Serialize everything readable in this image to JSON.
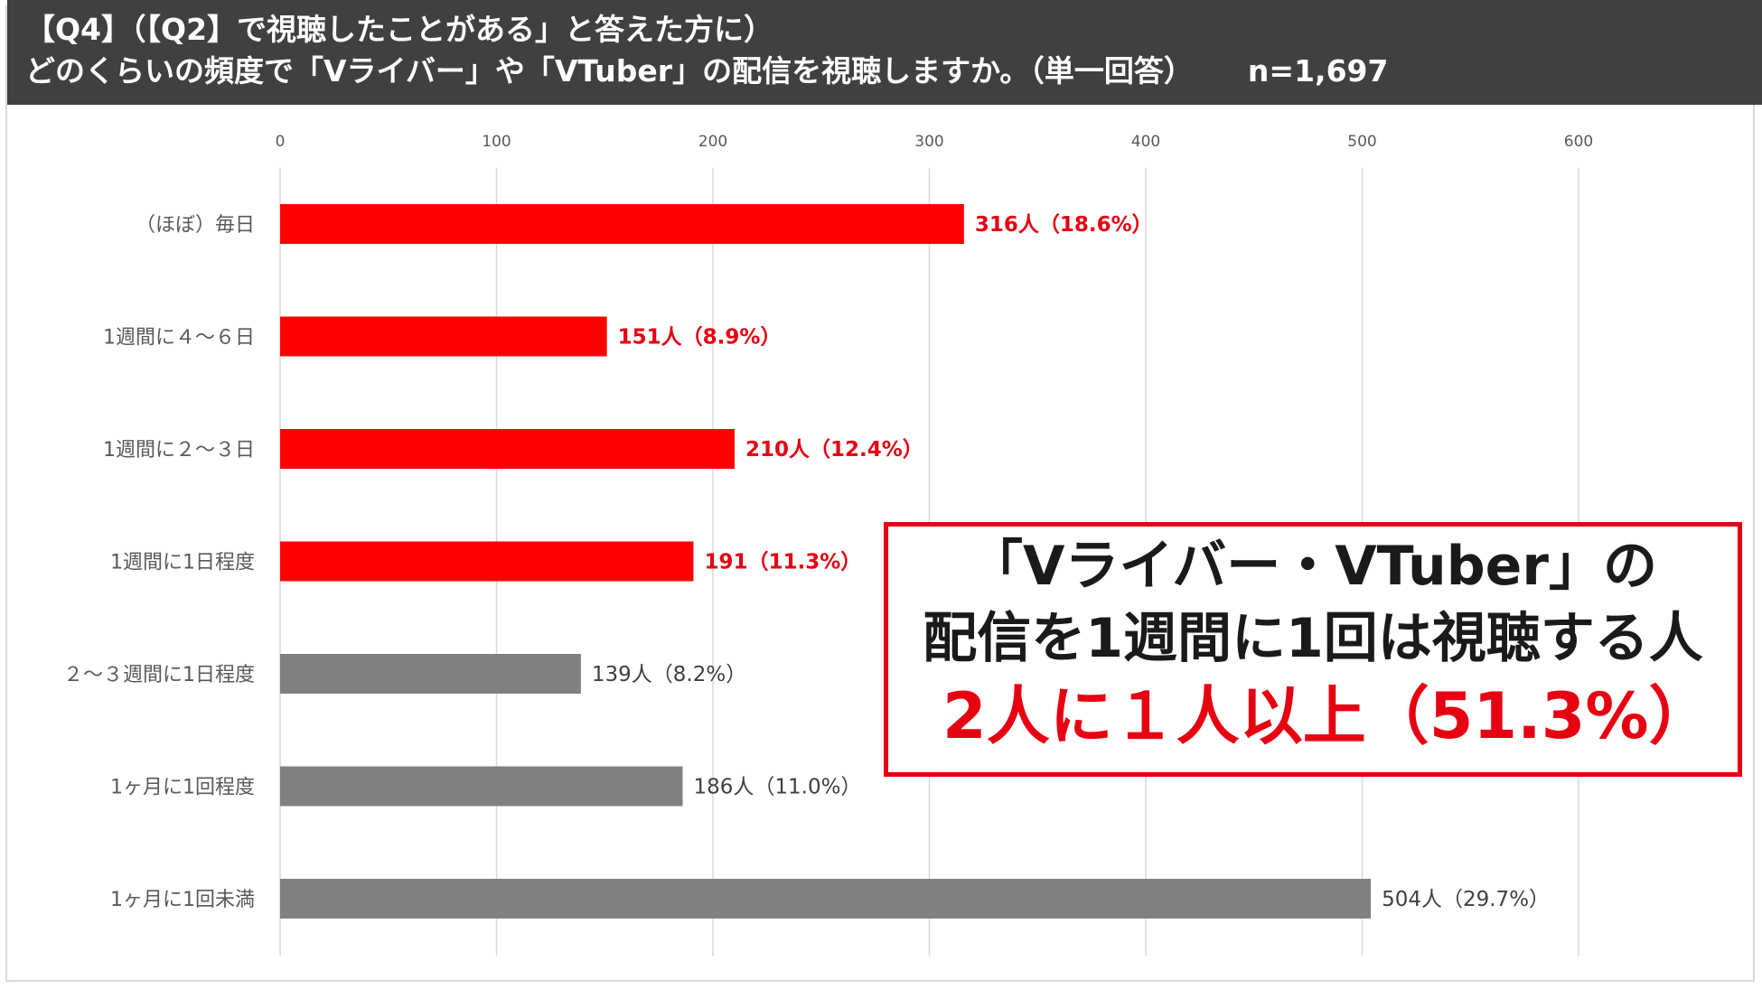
{
  "header": {
    "line1": "【Q4】（【Q2】で視聴したことがある」と答えた方に）",
    "line2": "どのくらいの頻度で「Vライバー」や「VTuber」の配信を視聴しますか。（単一回答）",
    "n_label": "n=1,697"
  },
  "colors": {
    "highlight": "#ff0000",
    "normal": "#808080",
    "header_bg": "#404040",
    "callout_red": "#e60012"
  },
  "chart_data": {
    "type": "bar",
    "orientation": "horizontal",
    "xlim": [
      0,
      600
    ],
    "ticks": [
      "0",
      "100",
      "200",
      "300",
      "400",
      "500",
      "600"
    ],
    "tick_values": [
      0,
      100,
      200,
      300,
      400,
      500,
      600
    ],
    "categories": [
      "（ほぼ）毎日",
      "1週間に４～６日",
      "1週間に２～３日",
      "1週間に1日程度",
      "２～３週間に1日程度",
      "1ヶ月に1回程度",
      "1ヶ月に1回未満"
    ],
    "values": [
      316,
      151,
      210,
      191,
      139,
      186,
      504
    ],
    "data_labels": [
      "316人（18.6%）",
      "151人（8.9%）",
      "210人（12.4%）",
      "191（11.3%）",
      "139人（8.2%）",
      "186人（11.0%）",
      "504人（29.7%）"
    ],
    "highlighted": [
      true,
      true,
      true,
      true,
      false,
      false,
      false
    ],
    "grid": true
  },
  "callout": {
    "line1": "「Vライバー・VTuber」の",
    "line2": "配信を1週間に1回は視聴する人",
    "line3": "2人に１人以上（51.3%）"
  }
}
